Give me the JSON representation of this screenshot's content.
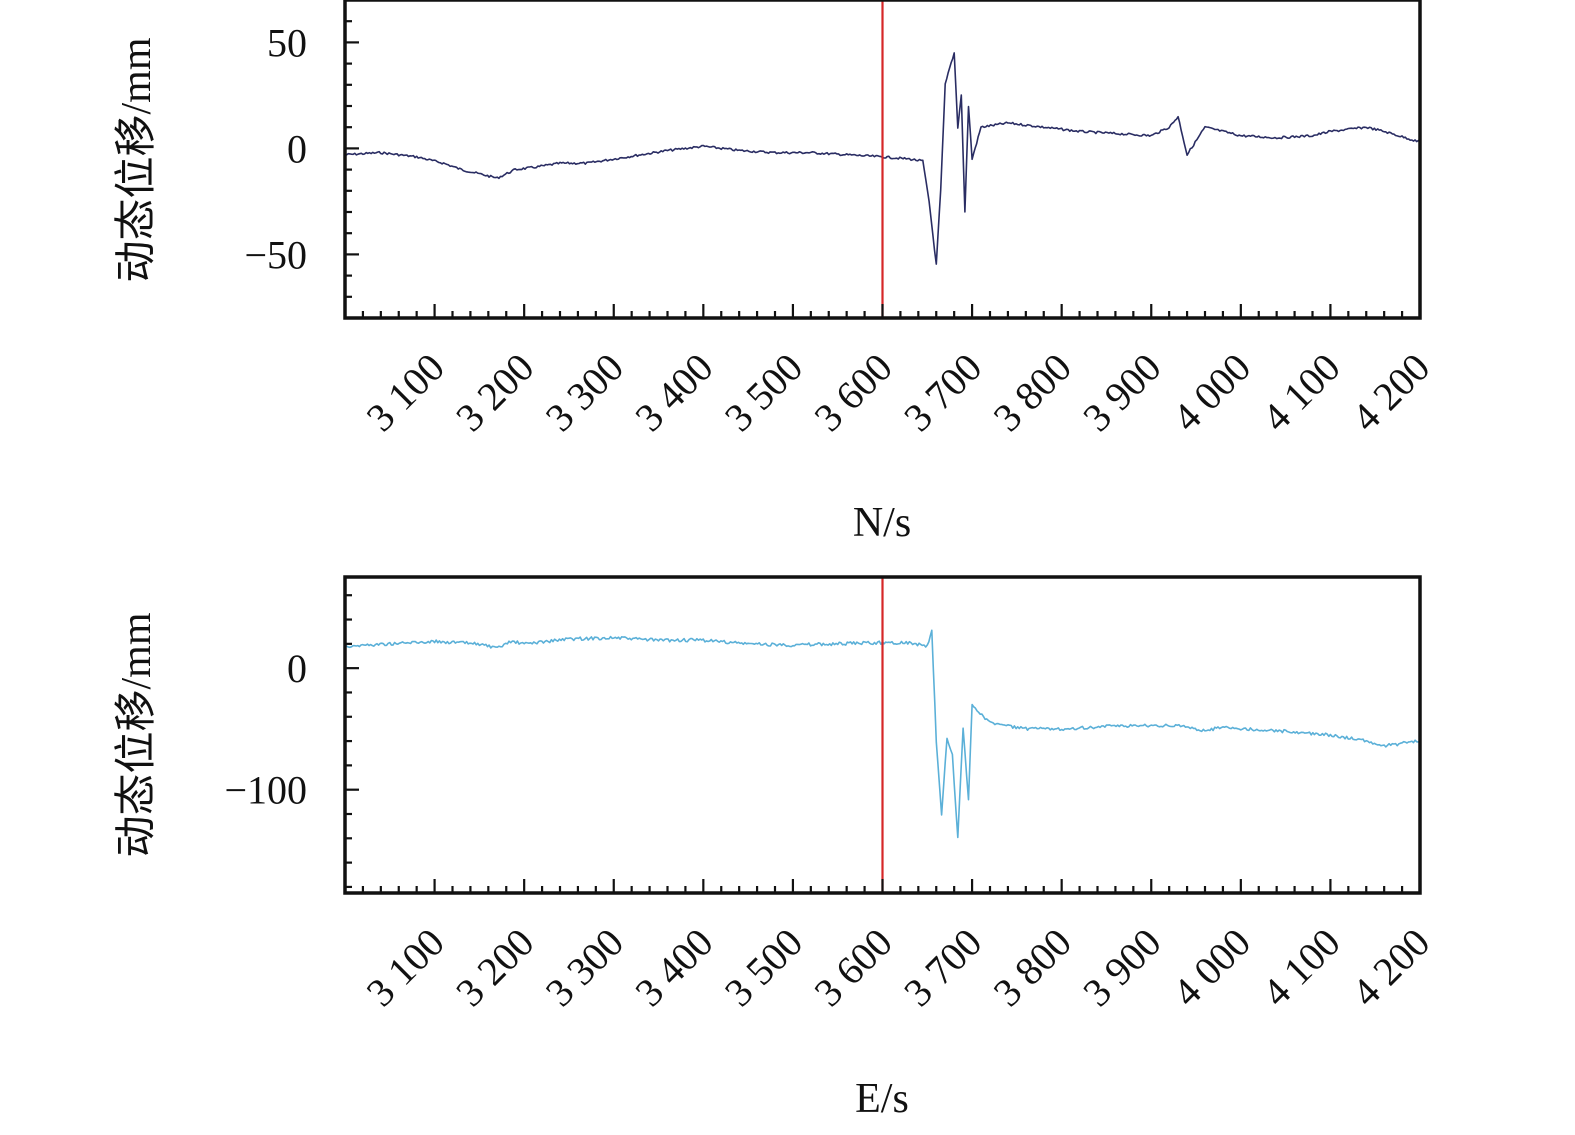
{
  "chart_data": [
    {
      "type": "line",
      "panel": "top",
      "xlabel": "N/s",
      "ylabel": "动态位移/mm",
      "xlim": [
        3000,
        4200
      ],
      "ylim": [
        -80,
        70
      ],
      "xticks": [
        3100,
        3200,
        3300,
        3400,
        3500,
        3600,
        3700,
        3800,
        3900,
        4000,
        4100,
        4200
      ],
      "xtick_labels": [
        "3 100",
        "3 200",
        "3 300",
        "3 400",
        "3 500",
        "3 600",
        "3 700",
        "3 800",
        "3 900",
        "4 000",
        "4 100",
        "4 200"
      ],
      "yticks": [
        50,
        0,
        -50
      ],
      "ytick_labels": [
        "50",
        "0",
        "−50"
      ],
      "marker_line_x": 3600,
      "marker_color": "#d62728",
      "series": [
        {
          "color": "#2a2d63",
          "x": [
            3000,
            3040,
            3080,
            3110,
            3130,
            3150,
            3170,
            3190,
            3210,
            3240,
            3270,
            3300,
            3330,
            3360,
            3380,
            3400,
            3440,
            3480,
            3520,
            3560,
            3600,
            3630,
            3645,
            3652,
            3660,
            3665,
            3670,
            3675,
            3680,
            3684,
            3688,
            3692,
            3696,
            3700,
            3710,
            3740,
            3780,
            3820,
            3860,
            3900,
            3920,
            3930,
            3940,
            3960,
            4000,
            4040,
            4080,
            4100,
            4120,
            4140,
            4160,
            4200
          ],
          "y": [
            -3,
            -2,
            -4,
            -7,
            -10,
            -12,
            -14,
            -10,
            -9,
            -7,
            -7,
            -5,
            -3,
            -1,
            0,
            1,
            -1,
            -2,
            -2,
            -3,
            -4,
            -5,
            -6,
            -25,
            -55,
            -20,
            30,
            38,
            45,
            10,
            25,
            -30,
            20,
            -5,
            10,
            12,
            10,
            8,
            7,
            6,
            10,
            15,
            -3,
            10,
            6,
            5,
            6,
            8,
            9,
            10,
            8,
            3
          ]
        }
      ]
    },
    {
      "type": "line",
      "panel": "bottom",
      "xlabel": "E/s",
      "ylabel": "动态位移/mm",
      "xlim": [
        3000,
        4200
      ],
      "ylim": [
        -185,
        75
      ],
      "xticks": [
        3100,
        3200,
        3300,
        3400,
        3500,
        3600,
        3700,
        3800,
        3900,
        4000,
        4100,
        4200
      ],
      "xtick_labels": [
        "3 100",
        "3 200",
        "3 300",
        "3 400",
        "3 500",
        "3 600",
        "3 700",
        "3 800",
        "3 900",
        "4 000",
        "4 100",
        "4 200"
      ],
      "yticks": [
        0,
        -100
      ],
      "ytick_labels": [
        "0",
        "−100"
      ],
      "marker_line_x": 3600,
      "marker_color": "#d62728",
      "series": [
        {
          "color": "#5bb0d8",
          "x": [
            3000,
            3050,
            3100,
            3150,
            3170,
            3185,
            3200,
            3250,
            3300,
            3350,
            3400,
            3450,
            3500,
            3550,
            3600,
            3630,
            3650,
            3655,
            3660,
            3666,
            3672,
            3678,
            3684,
            3690,
            3696,
            3700,
            3720,
            3760,
            3800,
            3850,
            3900,
            3940,
            3960,
            3980,
            4000,
            4050,
            4100,
            4140,
            4160,
            4200
          ],
          "y": [
            18,
            20,
            22,
            20,
            16,
            22,
            20,
            24,
            25,
            23,
            23,
            20,
            19,
            20,
            21,
            21,
            18,
            30,
            -60,
            -120,
            -58,
            -72,
            -140,
            -50,
            -108,
            -30,
            -45,
            -50,
            -50,
            -48,
            -47,
            -48,
            -52,
            -48,
            -50,
            -52,
            -55,
            -60,
            -64,
            -60
          ]
        }
      ]
    }
  ]
}
